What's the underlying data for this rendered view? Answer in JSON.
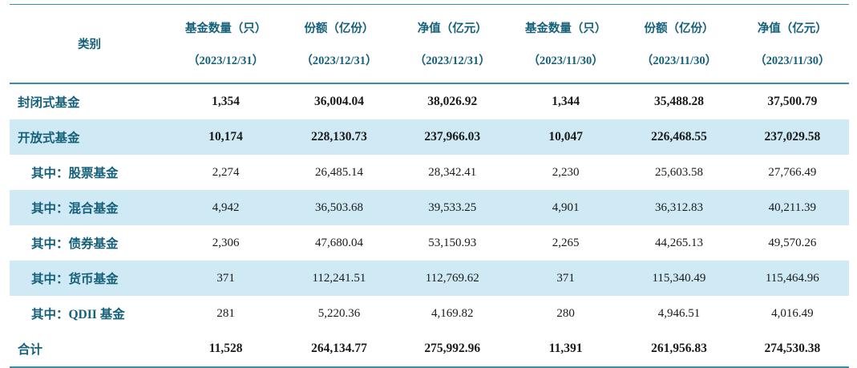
{
  "chart_data": {
    "type": "table",
    "header": {
      "category": "类别",
      "cols": [
        {
          "label": "基金数量（只）",
          "period": "（2023/12/31）"
        },
        {
          "label": "份额（亿份）",
          "period": "（2023/12/31）"
        },
        {
          "label": "净值（亿元）",
          "period": "（2023/12/31）"
        },
        {
          "label": "基金数量（只）",
          "period": "（2023/11/30）"
        },
        {
          "label": "份额（亿份）",
          "period": "（2023/11/30）"
        },
        {
          "label": "净值（亿元）",
          "period": "（2023/11/30）"
        }
      ]
    },
    "rows": [
      {
        "category": "封闭式基金",
        "values": [
          "1,354",
          "36,004.04",
          "38,026.92",
          "1,344",
          "35,488.28",
          "37,500.79"
        ]
      },
      {
        "category": "开放式基金",
        "values": [
          "10,174",
          "228,130.73",
          "237,966.03",
          "10,047",
          "226,468.55",
          "237,029.58"
        ]
      },
      {
        "category": "其中：股票基金",
        "values": [
          "2,274",
          "26,485.14",
          "28,342.41",
          "2,230",
          "25,603.58",
          "27,766.49"
        ]
      },
      {
        "category": "其中：混合基金",
        "values": [
          "4,942",
          "36,503.68",
          "39,533.25",
          "4,901",
          "36,312.83",
          "40,211.39"
        ]
      },
      {
        "category": "其中：债券基金",
        "values": [
          "2,306",
          "47,680.04",
          "53,150.93",
          "2,265",
          "44,265.13",
          "49,570.26"
        ]
      },
      {
        "category": "其中：货币基金",
        "values": [
          "371",
          "112,241.51",
          "112,769.62",
          "371",
          "115,340.49",
          "115,464.96"
        ]
      },
      {
        "category": "其中：QDII 基金",
        "values": [
          "281",
          "5,220.36",
          "4,169.82",
          "280",
          "4,946.51",
          "4,016.49"
        ]
      },
      {
        "category": "合计",
        "values": [
          "11,528",
          "264,134.77",
          "275,992.96",
          "11,391",
          "261,956.83",
          "274,530.38"
        ]
      }
    ]
  },
  "colors": {
    "accent_text": "#15607a",
    "rule_line": "#3a8fa6",
    "row_highlight": "#cfe9f5",
    "number_text": "#1a1a1a"
  }
}
